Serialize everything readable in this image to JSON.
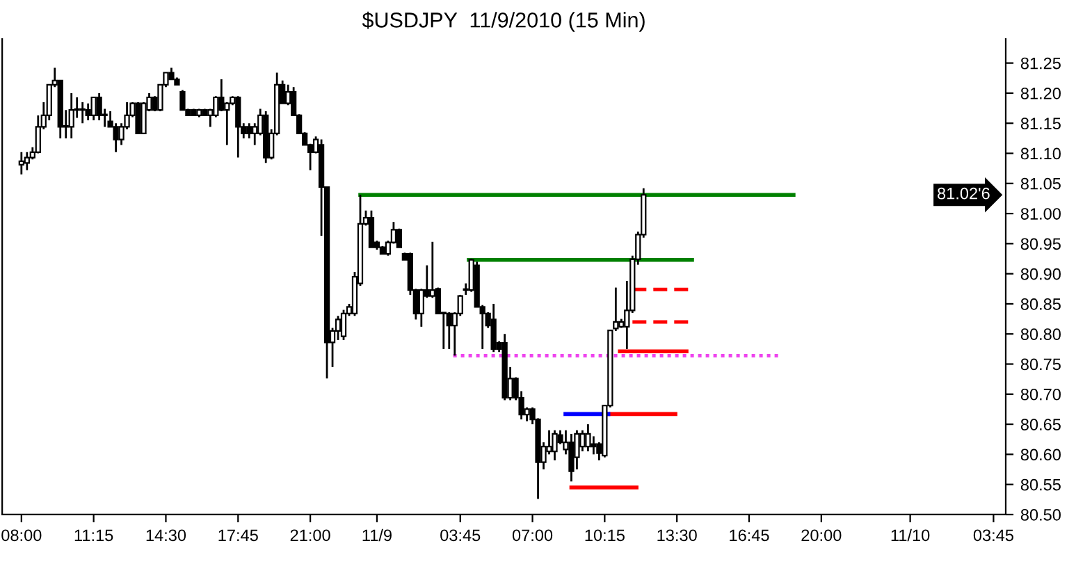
{
  "chart_data": {
    "type": "candlestick",
    "title": "$USDJPY  11/9/2010 (15 Min)",
    "x": [
      "2010-11-08T08:00",
      "2010-11-08T08:15",
      "2010-11-08T08:30",
      "2010-11-08T08:45",
      "2010-11-08T09:00",
      "2010-11-08T09:15",
      "2010-11-08T09:30",
      "2010-11-08T09:45",
      "2010-11-08T10:00",
      "2010-11-08T10:15",
      "2010-11-08T10:30",
      "2010-11-08T10:45",
      "2010-11-08T11:00",
      "2010-11-08T11:15",
      "2010-11-08T11:30",
      "2010-11-08T11:45",
      "2010-11-08T12:00",
      "2010-11-08T12:15",
      "2010-11-08T12:30",
      "2010-11-08T12:45",
      "2010-11-08T13:00",
      "2010-11-08T13:15",
      "2010-11-08T13:30",
      "2010-11-08T13:45",
      "2010-11-08T14:00",
      "2010-11-08T14:15",
      "2010-11-08T14:30",
      "2010-11-08T14:45",
      "2010-11-08T15:00",
      "2010-11-08T15:15",
      "2010-11-08T15:30",
      "2010-11-08T15:45",
      "2010-11-08T16:00",
      "2010-11-08T16:15",
      "2010-11-08T16:30",
      "2010-11-08T16:45",
      "2010-11-08T17:00",
      "2010-11-08T17:15",
      "2010-11-08T17:30",
      "2010-11-08T17:45",
      "2010-11-08T18:00",
      "2010-11-08T18:15",
      "2010-11-08T18:30",
      "2010-11-08T18:45",
      "2010-11-08T19:00",
      "2010-11-08T19:15",
      "2010-11-08T19:30",
      "2010-11-08T19:45",
      "2010-11-08T20:00",
      "2010-11-08T20:15",
      "2010-11-08T20:30",
      "2010-11-08T20:45",
      "2010-11-08T21:00",
      "2010-11-08T21:15",
      "2010-11-08T21:30",
      "2010-11-08T21:45",
      "2010-11-08T22:00",
      "2010-11-08T22:15",
      "2010-11-08T22:30",
      "2010-11-08T22:45",
      "2010-11-08T23:00",
      "2010-11-08T23:15",
      "2010-11-08T23:30",
      "2010-11-08T23:45",
      "2010-11-09T00:00",
      "2010-11-09T00:15",
      "2010-11-09T00:30",
      "2010-11-09T00:45",
      "2010-11-09T01:00",
      "2010-11-09T01:15",
      "2010-11-09T01:30",
      "2010-11-09T01:45",
      "2010-11-09T02:00",
      "2010-11-09T02:15",
      "2010-11-09T02:30",
      "2010-11-09T02:45",
      "2010-11-09T03:00",
      "2010-11-09T03:15",
      "2010-11-09T03:30",
      "2010-11-09T03:45",
      "2010-11-09T04:00",
      "2010-11-09T04:15",
      "2010-11-09T04:30",
      "2010-11-09T04:45",
      "2010-11-09T05:00",
      "2010-11-09T05:15",
      "2010-11-09T05:30",
      "2010-11-09T05:45",
      "2010-11-09T06:00",
      "2010-11-09T06:15",
      "2010-11-09T06:30",
      "2010-11-09T06:45",
      "2010-11-09T07:00",
      "2010-11-09T07:15",
      "2010-11-09T07:30",
      "2010-11-09T07:45",
      "2010-11-09T08:00",
      "2010-11-09T08:15",
      "2010-11-09T08:30",
      "2010-11-09T08:45",
      "2010-11-09T09:00",
      "2010-11-09T09:15",
      "2010-11-09T09:30",
      "2010-11-09T09:45",
      "2010-11-09T10:00",
      "2010-11-09T10:15",
      "2010-11-09T10:30",
      "2010-11-09T10:45",
      "2010-11-09T11:00",
      "2010-11-09T11:15",
      "2010-11-09T11:30",
      "2010-11-09T11:45",
      "2010-11-09T12:00"
    ],
    "ohlc": [
      [
        81.081,
        81.102,
        81.065,
        81.087
      ],
      [
        81.084,
        81.102,
        81.072,
        81.093
      ],
      [
        81.093,
        81.11,
        81.09,
        81.102
      ],
      [
        81.102,
        81.163,
        81.1,
        81.144
      ],
      [
        81.144,
        81.185,
        81.14,
        81.163
      ],
      [
        81.163,
        81.214,
        81.155,
        81.214
      ],
      [
        81.214,
        81.242,
        81.21,
        81.221
      ],
      [
        81.221,
        81.221,
        81.125,
        81.144
      ],
      [
        81.144,
        81.172,
        81.125,
        81.144
      ],
      [
        81.144,
        81.2,
        81.125,
        81.172
      ],
      [
        81.172,
        81.193,
        81.159,
        81.172
      ],
      [
        81.172,
        81.185,
        81.15,
        81.172
      ],
      [
        81.172,
        81.183,
        81.155,
        81.163
      ],
      [
        81.163,
        81.193,
        81.155,
        81.193
      ],
      [
        81.193,
        81.2,
        81.155,
        81.163
      ],
      [
        81.163,
        81.174,
        81.144,
        81.163
      ],
      [
        81.153,
        81.17,
        81.144,
        81.144
      ],
      [
        81.144,
        81.15,
        81.102,
        81.123
      ],
      [
        81.123,
        81.15,
        81.114,
        81.144
      ],
      [
        81.144,
        81.185,
        81.14,
        81.163
      ],
      [
        81.163,
        81.185,
        81.16,
        81.183
      ],
      [
        81.183,
        81.185,
        81.133,
        81.133
      ],
      [
        81.133,
        81.185,
        81.133,
        81.183
      ],
      [
        81.172,
        81.2,
        81.17,
        81.193
      ],
      [
        81.193,
        81.195,
        81.17,
        81.172
      ],
      [
        81.172,
        81.214,
        81.17,
        81.214
      ],
      [
        81.214,
        81.234,
        81.21,
        81.234
      ],
      [
        81.234,
        81.242,
        81.223,
        81.223
      ],
      [
        81.223,
        81.226,
        81.214,
        81.214
      ],
      [
        81.202,
        81.205,
        81.172,
        81.172
      ],
      [
        81.172,
        81.174,
        81.163,
        81.163
      ],
      [
        81.172,
        81.174,
        81.163,
        81.163
      ],
      [
        81.163,
        81.174,
        81.16,
        81.172
      ],
      [
        81.172,
        81.174,
        81.163,
        81.163
      ],
      [
        81.163,
        81.174,
        81.144,
        81.172
      ],
      [
        81.163,
        81.195,
        81.16,
        81.193
      ],
      [
        81.193,
        81.223,
        81.17,
        81.172
      ],
      [
        81.172,
        81.185,
        81.114,
        81.183
      ],
      [
        81.183,
        81.195,
        81.18,
        81.193
      ],
      [
        81.193,
        81.195,
        81.093,
        81.144
      ],
      [
        81.144,
        81.15,
        81.125,
        81.133
      ],
      [
        81.144,
        81.15,
        81.125,
        81.133
      ],
      [
        81.133,
        81.15,
        81.114,
        81.144
      ],
      [
        81.133,
        81.174,
        81.13,
        81.163
      ],
      [
        81.163,
        81.17,
        81.084,
        81.093
      ],
      [
        81.093,
        81.14,
        81.09,
        81.133
      ],
      [
        81.133,
        81.234,
        81.13,
        81.214
      ],
      [
        81.214,
        81.221,
        81.183,
        81.183
      ],
      [
        81.183,
        81.214,
        81.18,
        81.202
      ],
      [
        81.202,
        81.21,
        81.163,
        81.163
      ],
      [
        81.163,
        81.165,
        81.133,
        81.133
      ],
      [
        81.133,
        81.135,
        81.114,
        81.114
      ],
      [
        81.114,
        81.116,
        81.072,
        81.102
      ],
      [
        81.102,
        81.128,
        81.1,
        81.123
      ],
      [
        81.114,
        81.123,
        80.963,
        81.044
      ],
      [
        81.044,
        81.044,
        80.726,
        80.786
      ],
      [
        80.786,
        80.81,
        80.745,
        80.805
      ],
      [
        80.805,
        80.83,
        80.79,
        80.824
      ],
      [
        80.796,
        80.84,
        80.79,
        80.834
      ],
      [
        80.834,
        80.85,
        80.83,
        80.845
      ],
      [
        80.834,
        80.903,
        80.83,
        80.895
      ],
      [
        80.884,
        81.031,
        80.88,
        80.983
      ],
      [
        80.983,
        81.005,
        80.98,
        80.993
      ],
      [
        80.993,
        81.005,
        80.944,
        80.944
      ],
      [
        80.952,
        80.955,
        80.94,
        80.944
      ],
      [
        80.944,
        80.946,
        80.933,
        80.933
      ],
      [
        80.933,
        80.955,
        80.93,
        80.952
      ],
      [
        80.952,
        80.986,
        80.95,
        80.973
      ],
      [
        80.973,
        80.975,
        80.944,
        80.944
      ],
      [
        80.933,
        80.935,
        80.923,
        80.923
      ],
      [
        80.933,
        80.935,
        80.865,
        80.873
      ],
      [
        80.873,
        80.875,
        80.824,
        80.834
      ],
      [
        80.834,
        80.875,
        80.812,
        80.873
      ],
      [
        80.873,
        80.914,
        80.86,
        80.863
      ],
      [
        80.863,
        80.953,
        80.86,
        80.873
      ],
      [
        80.875,
        80.877,
        80.834,
        80.834
      ],
      [
        80.834,
        80.836,
        80.775,
        80.834
      ],
      [
        80.834,
        80.836,
        80.775,
        80.814
      ],
      [
        80.814,
        80.836,
        80.764,
        80.834
      ],
      [
        80.834,
        80.865,
        80.83,
        80.863
      ],
      [
        80.873,
        80.884,
        80.865,
        80.873
      ],
      [
        80.873,
        80.925,
        80.87,
        80.923
      ],
      [
        80.914,
        80.92,
        80.845,
        80.845
      ],
      [
        80.845,
        80.848,
        80.775,
        80.834
      ],
      [
        80.834,
        80.836,
        80.81,
        80.814
      ],
      [
        80.824,
        80.85,
        80.77,
        80.775
      ],
      [
        80.785,
        80.788,
        80.77,
        80.775
      ],
      [
        80.785,
        80.8,
        80.69,
        80.694
      ],
      [
        80.694,
        80.745,
        80.69,
        80.726
      ],
      [
        80.726,
        80.728,
        80.69,
        80.694
      ],
      [
        80.694,
        80.705,
        80.658,
        80.666
      ],
      [
        80.666,
        80.678,
        80.655,
        80.675
      ],
      [
        80.675,
        80.678,
        80.65,
        80.658
      ],
      [
        80.658,
        80.66,
        80.526,
        80.587
      ],
      [
        80.587,
        80.62,
        80.575,
        80.613
      ],
      [
        80.605,
        80.64,
        80.6,
        80.613
      ],
      [
        80.605,
        80.64,
        80.59,
        80.634
      ],
      [
        80.632,
        80.64,
        80.617,
        80.62
      ],
      [
        80.608,
        80.64,
        80.6,
        80.62
      ],
      [
        80.62,
        80.634,
        80.555,
        80.572
      ],
      [
        80.595,
        80.64,
        80.575,
        80.634
      ],
      [
        80.613,
        80.64,
        80.605,
        80.634
      ],
      [
        80.613,
        80.65,
        80.605,
        80.634
      ],
      [
        80.617,
        80.63,
        80.6,
        80.613
      ],
      [
        80.617,
        80.62,
        80.59,
        80.602
      ],
      [
        80.598,
        80.681,
        80.595,
        80.681
      ],
      [
        80.681,
        80.806,
        80.678,
        80.806
      ],
      [
        80.809,
        80.877,
        80.805,
        80.82
      ],
      [
        80.812,
        80.825,
        80.81,
        80.82
      ],
      [
        80.812,
        80.888,
        80.775,
        80.839
      ],
      [
        80.839,
        80.93,
        80.835,
        80.924
      ],
      [
        80.924,
        80.97,
        80.915,
        80.965
      ],
      [
        80.965,
        81.042,
        80.96,
        81.031
      ]
    ],
    "series": [
      {
        "type": "line",
        "color": "#008000",
        "line_style": "solid",
        "x": [
          "2010-11-08T23:15",
          "2010-11-09T18:45"
        ],
        "values": [
          81.031,
          81.031
        ]
      },
      {
        "type": "line",
        "color": "#008000",
        "line_style": "solid",
        "x": [
          "2010-11-09T04:08",
          "2010-11-09T14:11"
        ],
        "values": [
          80.923,
          80.923
        ]
      },
      {
        "type": "line",
        "color": "#ff0000",
        "line_style": "dashed",
        "x": [
          "2010-11-09T11:30",
          "2010-11-09T14:11"
        ],
        "values": [
          80.874,
          80.874
        ]
      },
      {
        "type": "line",
        "color": "#ff0000",
        "line_style": "dashed",
        "x": [
          "2010-11-09T11:30",
          "2010-11-09T14:11"
        ],
        "values": [
          80.82,
          80.82
        ]
      },
      {
        "type": "line",
        "color": "#ff0000",
        "line_style": "solid",
        "x": [
          "2010-11-09T10:56",
          "2010-11-09T13:56"
        ],
        "values": [
          80.771,
          80.771
        ]
      },
      {
        "type": "line",
        "color": "#ee44ee",
        "line_style": "dotted",
        "x": [
          "2010-11-09T03:26",
          "2010-11-09T18:08"
        ],
        "values": [
          80.764,
          80.764
        ]
      },
      {
        "type": "line",
        "color": "#ff0000",
        "line_style": "solid",
        "x": [
          "2010-11-09T10:25",
          "2010-11-09T13:26"
        ],
        "values": [
          80.667,
          80.667
        ]
      },
      {
        "type": "line",
        "color": "#0000ff",
        "line_style": "solid",
        "x": [
          "2010-11-09T08:29",
          "2010-11-09T10:25"
        ],
        "values": [
          80.667,
          80.667
        ]
      },
      {
        "type": "line",
        "color": "#ff0000",
        "line_style": "solid",
        "x": [
          "2010-11-09T08:45",
          "2010-11-09T11:41"
        ],
        "values": [
          80.545,
          80.545
        ]
      }
    ],
    "annotations": [
      "81.02'6"
    ],
    "xlim": [
      "2010-11-08T07:08",
      "2010-11-10T04:18"
    ],
    "ylim": [
      80.5,
      81.29
    ],
    "xticks": [
      {
        "value": "2010-11-08T08:00",
        "label": "08:00"
      },
      {
        "value": "2010-11-08T11:15",
        "label": "11:15"
      },
      {
        "value": "2010-11-08T14:30",
        "label": "14:30"
      },
      {
        "value": "2010-11-08T17:45",
        "label": "17:45"
      },
      {
        "value": "2010-11-08T21:00",
        "label": "21:00"
      },
      {
        "value": "2010-11-09T00:00",
        "label": "11/9"
      },
      {
        "value": "2010-11-09T03:45",
        "label": "03:45"
      },
      {
        "value": "2010-11-09T07:00",
        "label": "07:00"
      },
      {
        "value": "2010-11-09T10:15",
        "label": "10:15"
      },
      {
        "value": "2010-11-09T13:30",
        "label": "13:30"
      },
      {
        "value": "2010-11-09T16:45",
        "label": "16:45"
      },
      {
        "value": "2010-11-09T20:00",
        "label": "20:00"
      },
      {
        "value": "2010-11-10T00:00",
        "label": "11/10"
      },
      {
        "value": "2010-11-10T03:45",
        "label": "03:45"
      }
    ],
    "yticks": [
      {
        "value": 80.5,
        "label": "80.50"
      },
      {
        "value": 80.55,
        "label": "80.55"
      },
      {
        "value": 80.6,
        "label": "80.60"
      },
      {
        "value": 80.65,
        "label": "80.65"
      },
      {
        "value": 80.7,
        "label": "80.70"
      },
      {
        "value": 80.75,
        "label": "80.75"
      },
      {
        "value": 80.8,
        "label": "80.80"
      },
      {
        "value": 80.85,
        "label": "80.85"
      },
      {
        "value": 80.9,
        "label": "80.90"
      },
      {
        "value": 80.95,
        "label": "80.95"
      },
      {
        "value": 81.0,
        "label": "81.00"
      },
      {
        "value": 81.05,
        "label": "81.05"
      },
      {
        "value": 81.1,
        "label": "81.10"
      },
      {
        "value": 81.15,
        "label": "81.15"
      },
      {
        "value": 81.2,
        "label": "81.20"
      },
      {
        "value": 81.25,
        "label": "81.25"
      }
    ],
    "grid": false,
    "legend": false
  }
}
